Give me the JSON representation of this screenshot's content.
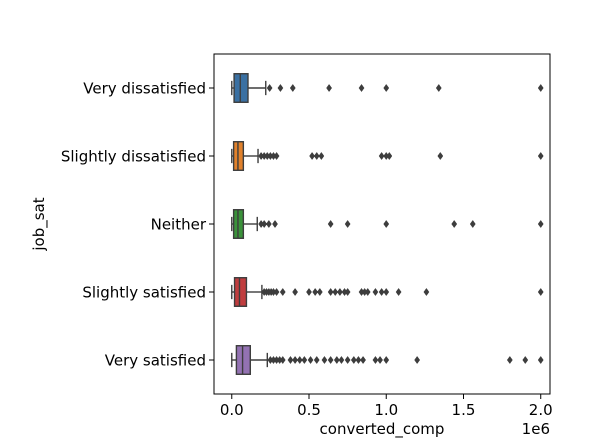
{
  "chart_data": {
    "type": "boxplot",
    "orientation": "horizontal",
    "title": "",
    "xlabel": "converted_comp",
    "ylabel": "job_sat",
    "x_offset_text": "1e6",
    "xlim": [
      -0.115,
      2.06
    ],
    "x_ticks": [
      0.0,
      0.5,
      1.0,
      1.5,
      2.0
    ],
    "x_tick_labels": [
      "0.0",
      "0.5",
      "1.0",
      "1.5",
      "2.0"
    ],
    "x_scale": 1000000,
    "grid": false,
    "categories": [
      "Very dissatisfied",
      "Slightly dissatisfied",
      "Neither",
      "Slightly satisfied",
      "Very satisfied"
    ],
    "boxes": [
      {
        "category": "Very dissatisfied",
        "color": "#3a70a2",
        "whisker_low": 0.0,
        "q1": 0.015,
        "median": 0.055,
        "q3": 0.105,
        "whisker_high": 0.22,
        "outliers": [
          0.245,
          0.315,
          0.395,
          0.63,
          0.84,
          1.0,
          1.34,
          2.0
        ]
      },
      {
        "category": "Slightly dissatisfied",
        "color": "#e1812b",
        "whisker_low": 0.0,
        "q1": 0.012,
        "median": 0.04,
        "q3": 0.075,
        "whisker_high": 0.17,
        "outliers": [
          0.19,
          0.21,
          0.23,
          0.25,
          0.27,
          0.29,
          0.52,
          0.55,
          0.58,
          0.97,
          1.0,
          1.02,
          1.35,
          2.0
        ]
      },
      {
        "category": "Neither",
        "color": "#3a923a",
        "whisker_low": 0.0,
        "q1": 0.012,
        "median": 0.04,
        "q3": 0.075,
        "whisker_high": 0.165,
        "outliers": [
          0.19,
          0.21,
          0.24,
          0.28,
          0.64,
          0.75,
          1.0,
          1.44,
          1.56,
          2.0
        ]
      },
      {
        "category": "Slightly satisfied",
        "color": "#c03d3e",
        "whisker_low": 0.0,
        "q1": 0.018,
        "median": 0.05,
        "q3": 0.095,
        "whisker_high": 0.195,
        "outliers": [
          0.21,
          0.225,
          0.24,
          0.255,
          0.27,
          0.29,
          0.33,
          0.41,
          0.5,
          0.54,
          0.57,
          0.64,
          0.67,
          0.7,
          0.73,
          0.75,
          0.84,
          0.86,
          0.88,
          0.93,
          0.97,
          1.0,
          1.08,
          1.26,
          2.0
        ]
      },
      {
        "category": "Very satisfied",
        "color": "#9372b2",
        "whisker_low": 0.0,
        "q1": 0.03,
        "median": 0.07,
        "q3": 0.12,
        "whisker_high": 0.23,
        "outliers": [
          0.25,
          0.27,
          0.29,
          0.31,
          0.33,
          0.38,
          0.41,
          0.44,
          0.47,
          0.51,
          0.55,
          0.6,
          0.64,
          0.68,
          0.71,
          0.75,
          0.79,
          0.82,
          0.85,
          0.93,
          0.96,
          1.0,
          1.2,
          1.8,
          1.9,
          2.0
        ]
      }
    ]
  }
}
